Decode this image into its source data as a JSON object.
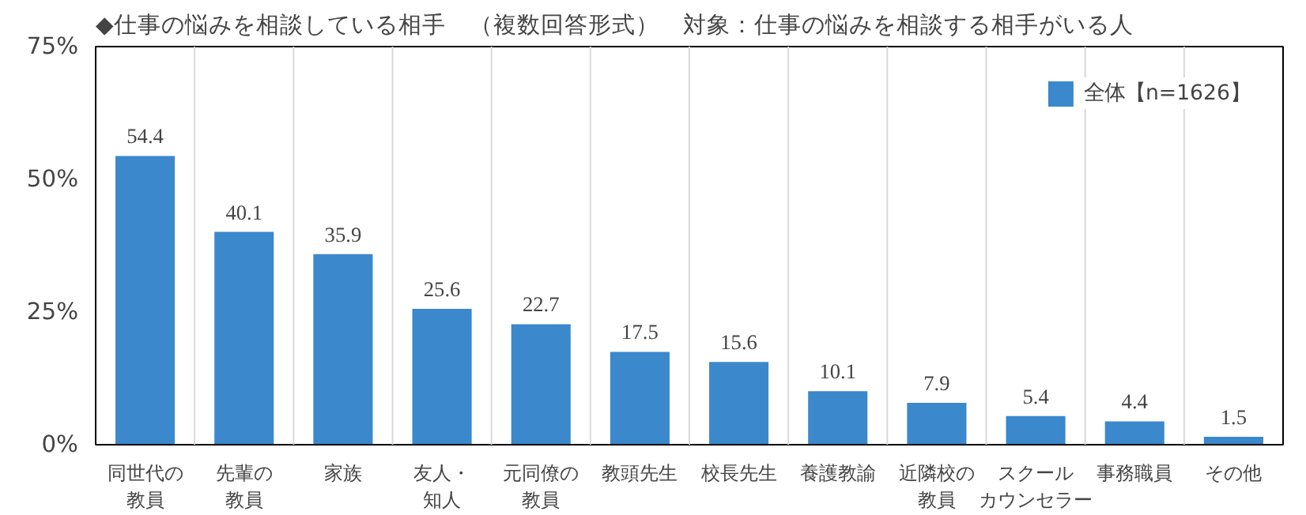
{
  "chart_data": {
    "type": "bar",
    "title": "◆仕事の悩みを相談している相手　（複数回答形式）　対象：仕事の悩みを相談する相手がいる人",
    "categories": [
      "同世代の教員",
      "先輩の教員",
      "家族",
      "友人・知人",
      "元同僚の教員",
      "教頭先生",
      "校長先生",
      "養護教諭",
      "近隣校の教員",
      "スクールカウンセラー",
      "事務職員",
      "その他"
    ],
    "series": [
      {
        "name": "全体【n=1626】",
        "color": "#3b88cc",
        "values": [
          54.4,
          40.1,
          35.9,
          25.6,
          22.7,
          17.5,
          15.6,
          10.1,
          7.9,
          5.4,
          4.4,
          1.5
        ]
      }
    ],
    "ylim": [
      0,
      75
    ],
    "yticks": [
      {
        "value": 0,
        "label": "0%"
      },
      {
        "value": 25,
        "label": "25%"
      },
      {
        "value": 50,
        "label": "50%"
      },
      {
        "value": 75,
        "label": "75%"
      }
    ],
    "data_labels": true,
    "grid": "x",
    "legend": "top right"
  }
}
